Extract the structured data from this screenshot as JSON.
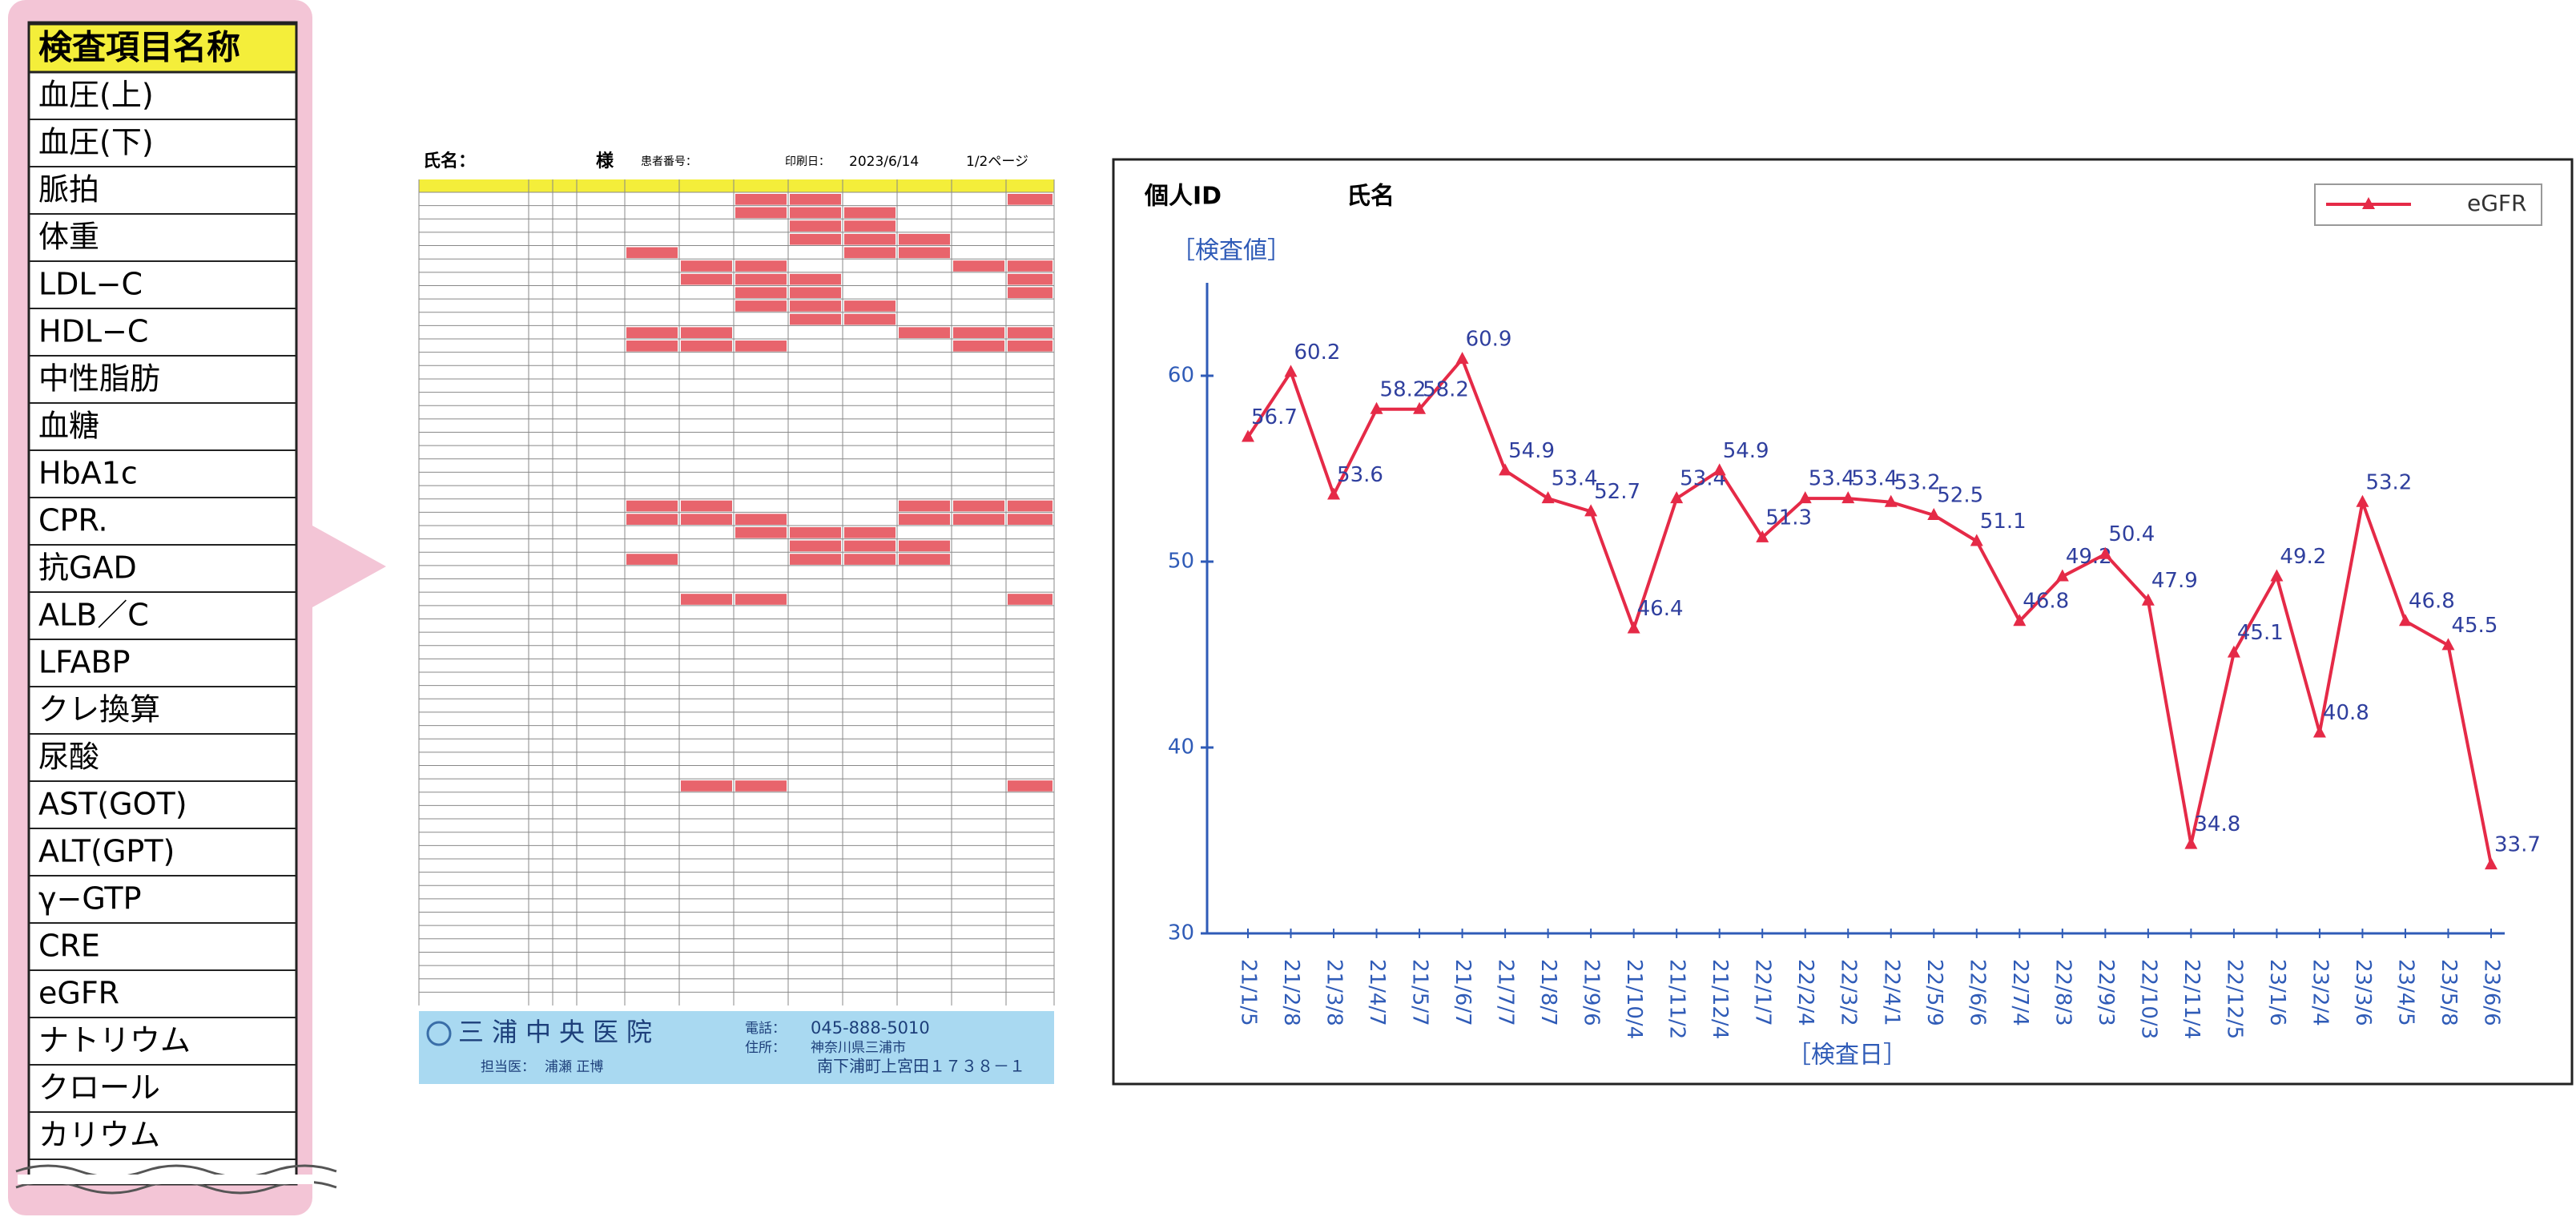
{
  "item_list": {
    "header": "検査項目名称",
    "items": [
      "血圧(上)",
      "血圧(下)",
      "脈拍",
      "体重",
      "LDL−C",
      "HDL−C",
      "中性脂肪",
      "血糖",
      "HbA1c",
      "CPR.",
      "抗GAD",
      "ALB／C",
      "LFABP",
      "クレ換算",
      "尿酸",
      "AST(GOT)",
      "ALT(GPT)",
      "γ−GTP",
      "CRE",
      "eGFR",
      "ナトリウム",
      "クロール",
      "カリウム"
    ]
  },
  "report": {
    "header": {
      "name_label": "氏名：",
      "honorific": "様",
      "id_label": "患者番号：",
      "date_label": "印刷日：",
      "date": "2023/6/14",
      "page": "1/2ページ"
    },
    "footer": {
      "clinic": "三浦中央医院",
      "doctor_label": "担当医：",
      "doctor": "浦瀬 正博",
      "tel_label": "電話：",
      "tel": "045-888-5010",
      "addr_label": "住所：",
      "addr1": "神奈川県三浦市",
      "addr2": "南下浦町上宮田１７３８－１"
    }
  },
  "chart_data": {
    "type": "line",
    "id_label": "個人ID",
    "name_label": "氏名",
    "y_label": "［検査値］",
    "x_label": "［検査日］",
    "categories": [
      "21/1/5",
      "21/2/8",
      "21/3/8",
      "21/4/7",
      "21/5/7",
      "21/6/7",
      "21/7/7",
      "21/8/7",
      "21/9/6",
      "21/10/4",
      "21/11/2",
      "21/12/4",
      "22/1/7",
      "22/2/4",
      "22/3/2",
      "22/4/1",
      "22/5/9",
      "22/6/6",
      "22/7/4",
      "22/8/3",
      "22/9/3",
      "22/10/3",
      "22/11/4",
      "22/12/5",
      "23/1/6",
      "23/2/4",
      "23/3/6",
      "23/4/5",
      "23/5/8",
      "23/6/6"
    ],
    "series": [
      {
        "name": "eGFR",
        "color": "#e52a47",
        "values": [
          56.7,
          60.2,
          53.6,
          58.2,
          58.2,
          60.9,
          54.9,
          53.4,
          52.7,
          46.4,
          53.4,
          54.9,
          51.3,
          53.4,
          53.4,
          53.2,
          52.5,
          51.1,
          46.8,
          49.2,
          50.4,
          47.9,
          34.8,
          45.1,
          49.2,
          40.8,
          53.2,
          46.8,
          45.5,
          33.7
        ]
      }
    ],
    "ylim": [
      30,
      65
    ],
    "yticks": [
      30,
      40,
      50,
      60
    ],
    "legend": "upper-right"
  }
}
